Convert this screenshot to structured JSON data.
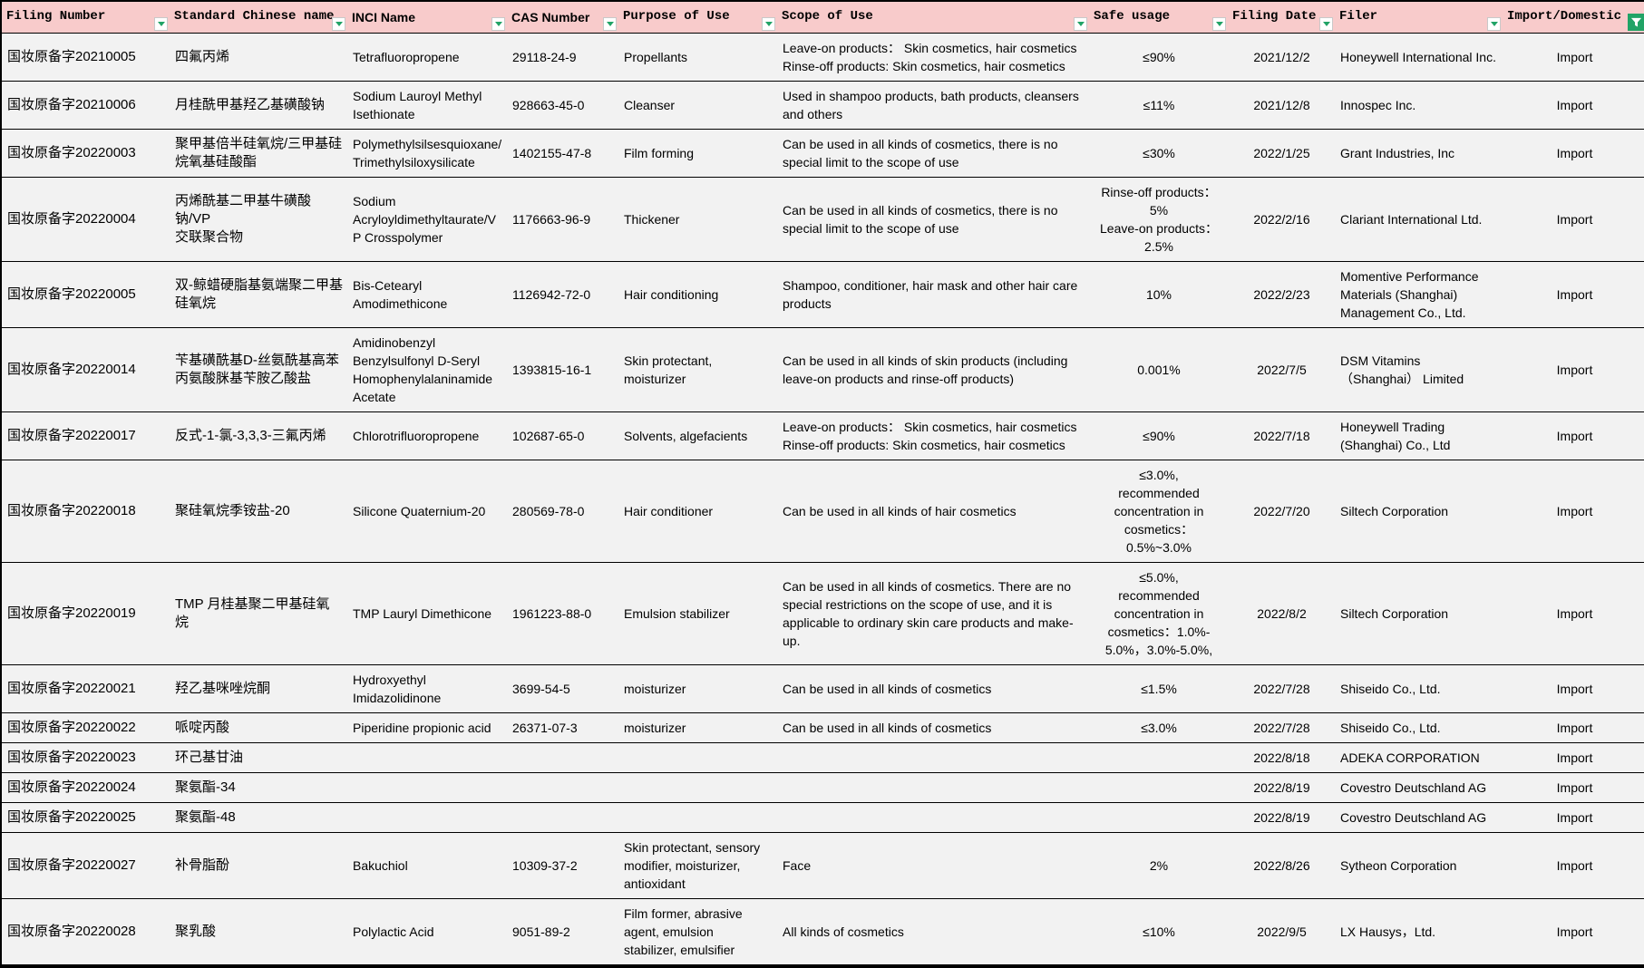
{
  "header": {
    "columns": [
      {
        "id": "filing_number",
        "label": "Filing Number",
        "filter": "dropdown"
      },
      {
        "id": "chinese_name",
        "label": "Standard Chinese name",
        "filter": "dropdown"
      },
      {
        "id": "inci_name",
        "label": "INCI Name",
        "filter": "dropdown"
      },
      {
        "id": "cas_number",
        "label": "CAS Number",
        "filter": "dropdown"
      },
      {
        "id": "purpose",
        "label": "Purpose of Use",
        "filter": "dropdown"
      },
      {
        "id": "scope",
        "label": "Scope of Use",
        "filter": "dropdown"
      },
      {
        "id": "safe_usage",
        "label": "Safe usage",
        "filter": "dropdown"
      },
      {
        "id": "filing_date",
        "label": "Filing Date",
        "filter": "dropdown"
      },
      {
        "id": "filer",
        "label": "Filer",
        "filter": "dropdown"
      },
      {
        "id": "import_domestic",
        "label": "Import/Domestic",
        "filter": "active"
      }
    ]
  },
  "icons": {
    "dropdown": "chevron-down-icon",
    "active_filter": "funnel-icon"
  },
  "colors": {
    "header_bg": "#F8CBCB",
    "row_bg": "#F2F2F2",
    "grid": "#000000",
    "filter_green": "#21A366"
  },
  "rows": [
    {
      "filing_number": "国妆原备字20210005",
      "chinese_name": "四氟丙烯",
      "inci_name": "Tetrafluoropropene",
      "cas_number": "29118-24-9",
      "purpose": "Propellants",
      "scope": "Leave-on products： Skin cosmetics, hair cosmetics\nRinse-off products: Skin cosmetics, hair cosmetics",
      "safe_usage": "≤90%",
      "filing_date": "2021/12/2",
      "filer": "Honeywell International Inc.",
      "import_domestic": "Import"
    },
    {
      "filing_number": "国妆原备字20210006",
      "chinese_name": "月桂酰甲基羟乙基磺酸钠",
      "inci_name": "Sodium Lauroyl Methyl\nIsethionate",
      "cas_number": "928663-45-0",
      "purpose": "Cleanser",
      "scope": "Used in shampoo products, bath products, cleansers\nand others",
      "safe_usage": "≤11%",
      "filing_date": "2021/12/8",
      "filer": "Innospec Inc.",
      "import_domestic": "Import"
    },
    {
      "filing_number": "国妆原备字20220003",
      "chinese_name": "聚甲基倍半硅氧烷/三甲基硅\n烷氧基硅酸酯",
      "inci_name": "Polymethylsilsesquioxane/\nTrimethylsiloxysilicate",
      "cas_number": "1402155-47-8",
      "purpose": "Film forming",
      "scope": "Can be used in all kinds of cosmetics, there is no\nspecial limit to the scope of use",
      "safe_usage": "≤30%",
      "filing_date": "2022/1/25",
      "filer": "Grant Industries, Inc",
      "import_domestic": "Import"
    },
    {
      "filing_number": "国妆原备字20220004",
      "chinese_name": "丙烯酰基二甲基牛磺酸钠/VP\n交联聚合物",
      "inci_name": "Sodium\nAcryloyldimethyltaurate/V\nP Crosspolymer",
      "cas_number": "1176663-96-9",
      "purpose": "Thickener",
      "scope": "Can be used in all kinds of cosmetics, there is no\nspecial limit to the scope of use",
      "safe_usage": "Rinse-off products：\n5%\nLeave-on products：\n2.5%",
      "filing_date": "2022/2/16",
      "filer": "Clariant International Ltd.",
      "import_domestic": "Import"
    },
    {
      "filing_number": "国妆原备字20220005",
      "chinese_name": "双-鲸蜡硬脂基氨端聚二甲基\n硅氧烷",
      "inci_name": "Bis-Cetearyl\nAmodimethicone",
      "cas_number": "1126942-72-0",
      "purpose": "Hair conditioning",
      "scope": "Shampoo, conditioner, hair mask and other hair care\nproducts",
      "safe_usage": "10%",
      "filing_date": "2022/2/23",
      "filer": "Momentive Performance\nMaterials (Shanghai)\nManagement Co., Ltd.",
      "import_domestic": "Import"
    },
    {
      "filing_number": "国妆原备字20220014",
      "chinese_name": "苄基磺酰基D-丝氨酰基高苯\n丙氨酸脒基苄胺乙酸盐",
      "inci_name": "Amidinobenzyl\nBenzylsulfonyl D-Seryl\nHomophenylalaninamide\nAcetate",
      "cas_number": "1393815-16-1",
      "purpose": "Skin protectant,\nmoisturizer",
      "scope": "Can be used in all kinds of skin products (including\nleave-on products and rinse-off products)",
      "safe_usage": "0.001%",
      "filing_date": "2022/7/5",
      "filer": "DSM Vitamins\n（Shanghai） Limited",
      "import_domestic": "Import"
    },
    {
      "filing_number": "国妆原备字20220017",
      "chinese_name": "反式-1-氯-3,3,3-三氟丙烯",
      "inci_name": "Chlorotrifluoropropene",
      "cas_number": "102687-65-0",
      "purpose": "Solvents, algefacients",
      "scope": "Leave-on products： Skin cosmetics, hair cosmetics\nRinse-off products: Skin cosmetics, hair cosmetics",
      "safe_usage": "≤90%",
      "filing_date": "2022/7/18",
      "filer": "Honeywell Trading\n(Shanghai) Co., Ltd",
      "import_domestic": "Import"
    },
    {
      "filing_number": "国妆原备字20220018",
      "chinese_name": "聚硅氧烷季铵盐-20",
      "inci_name": "Silicone Quaternium-20",
      "cas_number": "280569-78-0",
      "purpose": "Hair conditioner",
      "scope": "Can be used in all kinds of hair cosmetics",
      "safe_usage": "≤3.0%,\nrecommended\nconcentration in\ncosmetics：\n0.5%~3.0%",
      "filing_date": "2022/7/20",
      "filer": "Siltech Corporation",
      "import_domestic": "Import"
    },
    {
      "filing_number": "国妆原备字20220019",
      "chinese_name": "TMP 月桂基聚二甲基硅氧烷",
      "inci_name": "TMP Lauryl Dimethicone",
      "cas_number": "1961223-88-0",
      "purpose": "Emulsion stabilizer",
      "scope": "Can be used in all kinds of cosmetics. There are no\nspecial restrictions on the scope of use, and it is\napplicable to ordinary skin care products and make-\nup.",
      "safe_usage": "≤5.0%,\nrecommended\nconcentration in\ncosmetics：1.0%-\n5.0%，3.0%-5.0%,",
      "filing_date": "2022/8/2",
      "filer": "Siltech Corporation",
      "import_domestic": "Import"
    },
    {
      "filing_number": "国妆原备字20220021",
      "chinese_name": "羟乙基咪唑烷酮",
      "inci_name": "Hydroxyethyl\nImidazolidinone",
      "cas_number": "3699-54-5",
      "purpose": "moisturizer",
      "scope": "Can be used in all kinds of cosmetics",
      "safe_usage": "≤1.5%",
      "filing_date": "2022/7/28",
      "filer": "Shiseido Co., Ltd.",
      "import_domestic": "Import"
    },
    {
      "filing_number": "国妆原备字20220022",
      "chinese_name": "哌啶丙酸",
      "inci_name": "Piperidine propionic acid",
      "cas_number": "26371-07-3",
      "purpose": "moisturizer",
      "scope": "Can be used in all kinds of cosmetics",
      "safe_usage": "≤3.0%",
      "filing_date": "2022/7/28",
      "filer": "Shiseido Co., Ltd.",
      "import_domestic": "Import"
    },
    {
      "filing_number": "国妆原备字20220023",
      "chinese_name": "环己基甘油",
      "inci_name": "",
      "cas_number": "",
      "purpose": "",
      "scope": "",
      "safe_usage": "",
      "filing_date": "2022/8/18",
      "filer": "ADEKA CORPORATION",
      "import_domestic": "Import"
    },
    {
      "filing_number": "国妆原备字20220024",
      "chinese_name": "聚氨酯-34",
      "inci_name": "",
      "cas_number": "",
      "purpose": "",
      "scope": "",
      "safe_usage": "",
      "filing_date": "2022/8/19",
      "filer": "Covestro Deutschland AG",
      "import_domestic": "Import"
    },
    {
      "filing_number": "国妆原备字20220025",
      "chinese_name": "聚氨酯-48",
      "inci_name": "",
      "cas_number": "",
      "purpose": "",
      "scope": "",
      "safe_usage": "",
      "filing_date": "2022/8/19",
      "filer": "Covestro Deutschland AG",
      "import_domestic": "Import"
    },
    {
      "filing_number": "国妆原备字20220027",
      "chinese_name": "补骨脂酚",
      "inci_name": "Bakuchiol",
      "cas_number": "10309-37-2",
      "purpose": "Skin protectant, sensory\nmodifier, moisturizer,\nantioxidant",
      "scope": "Face",
      "safe_usage": "2%",
      "filing_date": "2022/8/26",
      "filer": "Sytheon Corporation",
      "import_domestic": "Import"
    },
    {
      "filing_number": "国妆原备字20220028",
      "chinese_name": "聚乳酸",
      "inci_name": "Polylactic Acid",
      "cas_number": "9051-89-2",
      "purpose": "Film former, abrasive\nagent, emulsion\nstabilizer, emulsifier",
      "scope": "All kinds of cosmetics",
      "safe_usage": "≤10%",
      "filing_date": "2022/9/5",
      "filer": "LX Hausys，Ltd.",
      "import_domestic": "Import"
    }
  ]
}
